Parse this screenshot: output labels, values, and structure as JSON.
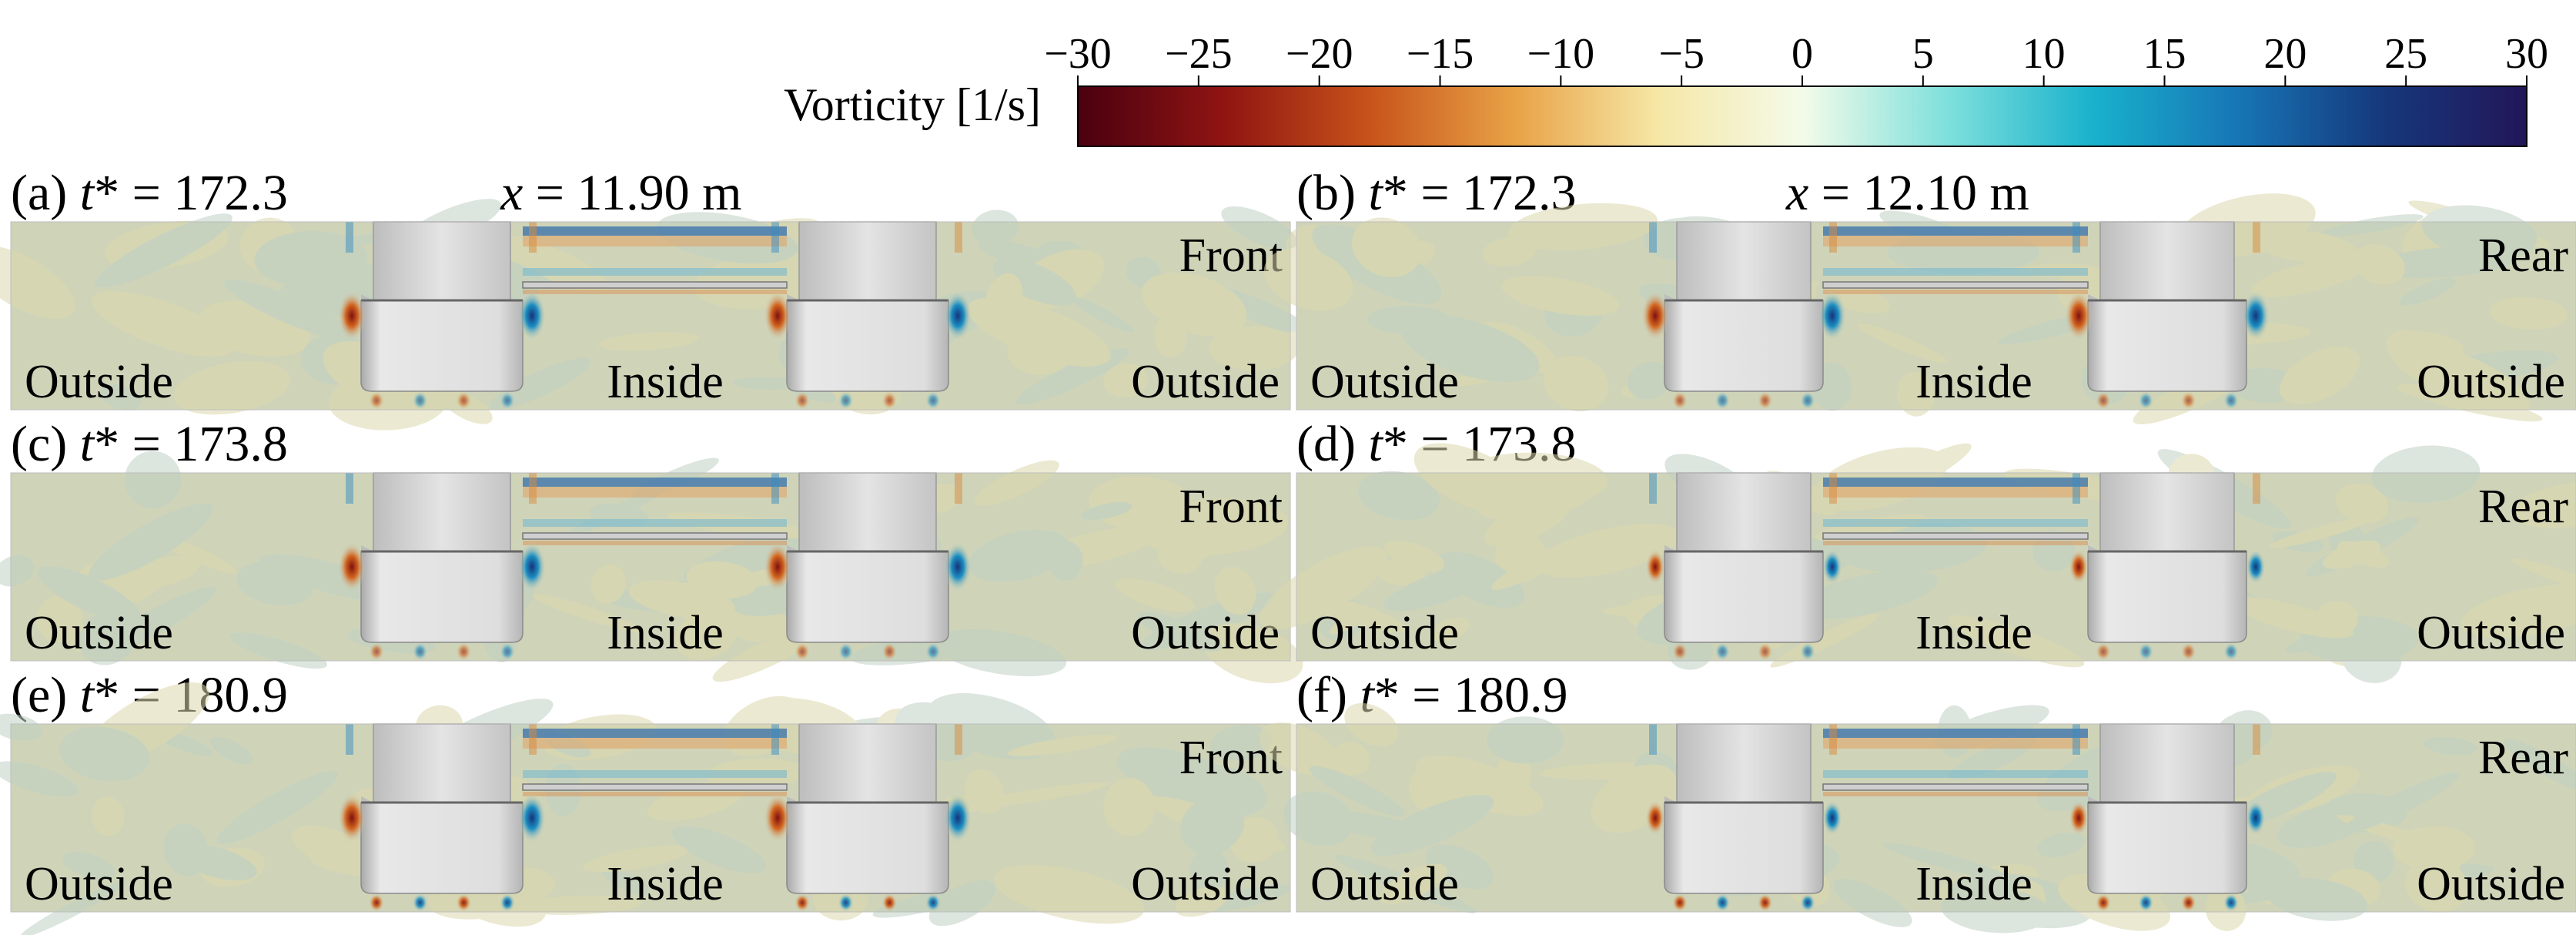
{
  "colorbar": {
    "title": "Vorticity [1/s]",
    "ticks": [
      "−30",
      "−25",
      "−20",
      "−15",
      "−10",
      "−5",
      "0",
      "5",
      "10",
      "15",
      "20",
      "25",
      "30"
    ],
    "colors": [
      "#4a0010",
      "#8f1412",
      "#c7521a",
      "#e8a145",
      "#f6e7a6",
      "#f3fbe9",
      "#7fe0dc",
      "#19b2cc",
      "#1776b6",
      "#16387c",
      "#221658"
    ]
  },
  "panels": [
    {
      "tag": "(a) ",
      "tstar": "t",
      "star_eq": "* = 172.3",
      "xloc_var": "x",
      "xloc_val": " = 11.90 m",
      "view": "Front",
      "regions": {
        "left": "Outside",
        "center": "Inside",
        "right": "Outside"
      }
    },
    {
      "tag": "(b) ",
      "tstar": "t",
      "star_eq": "* = 172.3",
      "xloc_var": "x",
      "xloc_val": " = 12.10 m",
      "view": "Rear",
      "regions": {
        "left": "Outside",
        "center": "Inside",
        "right": "Outside"
      }
    },
    {
      "tag": "(c) ",
      "tstar": "t",
      "star_eq": "* = 173.8",
      "view": "Front",
      "regions": {
        "left": "Outside",
        "center": "Inside",
        "right": "Outside"
      }
    },
    {
      "tag": "(d) ",
      "tstar": "t",
      "star_eq": "* = 173.8",
      "view": "Rear",
      "regions": {
        "left": "Outside",
        "center": "Inside",
        "right": "Outside"
      }
    },
    {
      "tag": "(e) ",
      "tstar": "t",
      "star_eq": "* = 180.9",
      "view": "Front",
      "regions": {
        "left": "Outside",
        "center": "Inside",
        "right": "Outside"
      }
    },
    {
      "tag": "(f) ",
      "tstar": "t",
      "star_eq": "* = 180.9",
      "view": "Rear",
      "regions": {
        "left": "Outside",
        "center": "Inside",
        "right": "Outside"
      }
    }
  ],
  "colors": {
    "background_field": "#cfd4b9",
    "structure": "#d8d8d8",
    "vortex_positive": "#1c6fb3",
    "vortex_negative": "#c9461c"
  }
}
